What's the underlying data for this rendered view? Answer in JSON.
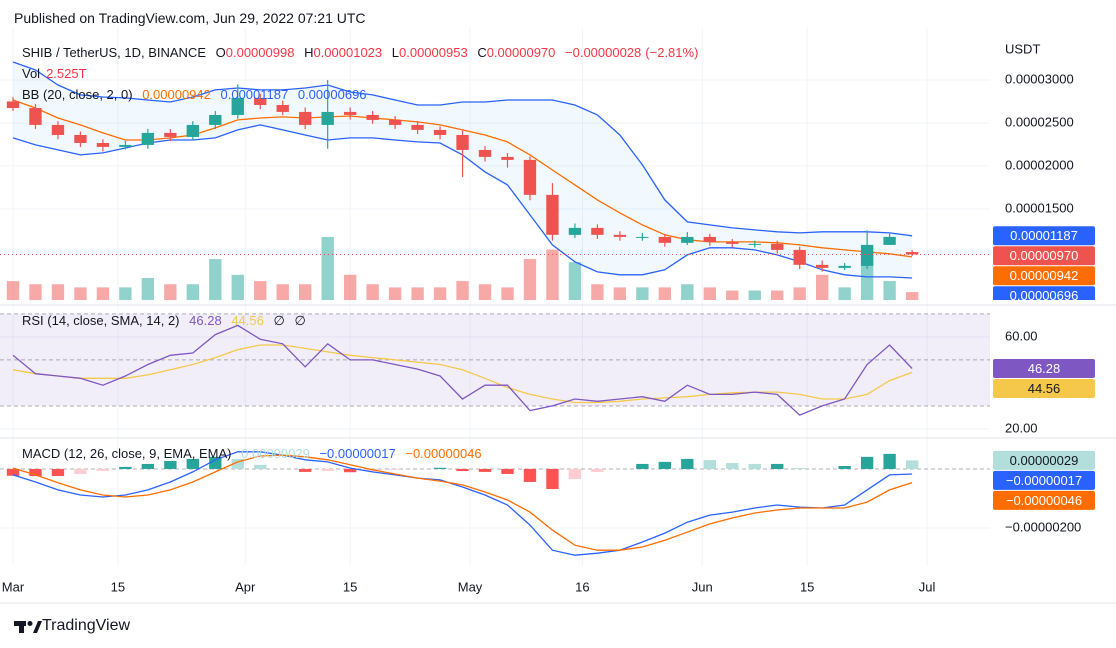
{
  "chart_data": {
    "type": "candlestick",
    "published": "Published on TradingView.com, Jun 29, 2022 07:21 UTC",
    "symbol": "SHIB / TetherUS, 1D, BINANCE",
    "ohlc_legend": [
      {
        "key": "O",
        "value": 9.98e-06,
        "label": "0.00000998"
      },
      {
        "key": "H",
        "value": 1.023e-05,
        "label": "0.00001023"
      },
      {
        "key": "L",
        "value": 9.53e-06,
        "label": "0.00000953"
      },
      {
        "key": "C",
        "value": 9.7e-06,
        "label": "0.00000970"
      }
    ],
    "change": {
      "value": -2.8e-07,
      "label": "−0.00000028"
    },
    "change_pct": {
      "value": -2.81,
      "label": "(−2.81%)"
    },
    "currency": "USDT",
    "brand": "TradingView",
    "grid": true,
    "up_color": "#26a69a",
    "down_color": "#ef5350",
    "xlim": [
      -1.735,
      130.4
    ],
    "xticks": [
      {
        "value": 0,
        "label": "Mar"
      },
      {
        "value": 14,
        "label": "15"
      },
      {
        "value": 31,
        "label": "Apr"
      },
      {
        "value": 45,
        "label": "15"
      },
      {
        "value": 61,
        "label": "May"
      },
      {
        "value": 76,
        "label": "16"
      },
      {
        "value": 92,
        "label": "Jun"
      },
      {
        "value": 106,
        "label": "15"
      },
      {
        "value": 122,
        "label": "Jul"
      }
    ],
    "ylim": [
      4.4e-06,
      3.465e-05
    ],
    "yticks": [
      {
        "value": 3e-05,
        "label": "0.00003000"
      },
      {
        "value": 2.5e-05,
        "label": "0.00002500"
      },
      {
        "value": 2e-05,
        "label": "0.00002000"
      },
      {
        "value": 1.5e-05,
        "label": "0.00001500"
      }
    ],
    "x": [
      0,
      3,
      6,
      9,
      12,
      15,
      18,
      21,
      24,
      27,
      30,
      33,
      36,
      39,
      42,
      45,
      48,
      51,
      54,
      57,
      60,
      63,
      66,
      69,
      72,
      75,
      78,
      81,
      84,
      87,
      90,
      93,
      96,
      99,
      102,
      105,
      108,
      111,
      114,
      117,
      120
    ],
    "open": [
      2.75e-05,
      2.674e-05,
      2.477e-05,
      2.36e-05,
      2.267e-05,
      2.221e-05,
      2.244e-05,
      2.384e-05,
      2.337e-05,
      2.477e-05,
      2.593e-05,
      2.791e-05,
      2.709e-05,
      2.628e-05,
      2.477e-05,
      2.628e-05,
      2.593e-05,
      2.535e-05,
      2.477e-05,
      2.419e-05,
      2.36e-05,
      2.186e-05,
      2.105e-05,
      2.07e-05,
      1.663e-05,
      1.198e-05,
      1.279e-05,
      1.198e-05,
      1.174e-05,
      1.174e-05,
      1.105e-05,
      1.174e-05,
      1.116e-05,
      1.093e-05,
      1.093e-05,
      1.023e-05,
      8.49e-06,
      8.14e-06,
      8.37e-06,
      1.081e-05,
      9.98e-06
    ],
    "high": [
      2.8e-05,
      2.72e-05,
      2.52e-05,
      2.4e-05,
      2.31e-05,
      2.29e-05,
      2.43e-05,
      2.43e-05,
      2.52e-05,
      2.64e-05,
      2.95e-05,
      2.84e-05,
      2.76e-05,
      2.68e-05,
      3e-05,
      2.68e-05,
      2.64e-05,
      2.58e-05,
      2.52e-05,
      2.46e-05,
      2.41e-05,
      2.23e-05,
      2.15e-05,
      2.11e-05,
      1.8e-05,
      1.33e-05,
      1.32e-05,
      1.24e-05,
      1.22e-05,
      1.21e-05,
      1.23e-05,
      1.21e-05,
      1.15e-05,
      1.13e-05,
      1.13e-05,
      1.06e-05,
      9e-06,
      8.7e-06,
      1.25e-05,
      1.21e-05,
      1.023e-05
    ],
    "low": [
      2.64e-05,
      2.43e-05,
      2.31e-05,
      2.22e-05,
      2.17e-05,
      2.19e-05,
      2.2e-05,
      2.29e-05,
      2.3e-05,
      2.43e-05,
      2.55e-05,
      2.66e-05,
      2.59e-05,
      2.43e-05,
      2.2e-05,
      2.54e-05,
      2.49e-05,
      2.43e-05,
      2.37e-05,
      2.31e-05,
      1.87e-05,
      2.05e-05,
      1.98e-05,
      1.6e-05,
      1.13e-05,
      1.16e-05,
      1.15e-05,
      1.13e-05,
      1.13e-05,
      1.06e-05,
      1.08e-05,
      1.07e-05,
      1.05e-05,
      1.05e-05,
      9.8e-06,
      8e-06,
      7.7e-06,
      7.9e-06,
      8e-06,
      1.08e-05,
      9.53e-06
    ],
    "close": [
      2.674e-05,
      2.477e-05,
      2.36e-05,
      2.267e-05,
      2.221e-05,
      2.244e-05,
      2.384e-05,
      2.337e-05,
      2.477e-05,
      2.593e-05,
      2.791e-05,
      2.709e-05,
      2.628e-05,
      2.477e-05,
      2.628e-05,
      2.593e-05,
      2.535e-05,
      2.477e-05,
      2.419e-05,
      2.36e-05,
      2.186e-05,
      2.105e-05,
      2.07e-05,
      1.663e-05,
      1.198e-05,
      1.279e-05,
      1.198e-05,
      1.174e-05,
      1.174e-05,
      1.105e-05,
      1.174e-05,
      1.116e-05,
      1.093e-05,
      1.093e-05,
      1.023e-05,
      8.49e-06,
      8.14e-06,
      8.37e-06,
      1.081e-05,
      1.174e-05,
      9.7e-06
    ],
    "volume": {
      "name": "Vol",
      "legend": {
        "value": 2.525,
        "label": "2.525T"
      },
      "values": [
        6,
        5,
        5,
        4,
        4,
        4,
        7,
        5,
        5,
        13,
        8,
        6,
        5,
        5,
        20,
        8,
        5,
        4,
        4,
        4,
        6,
        5,
        4,
        13,
        16,
        12,
        5,
        4,
        4,
        4,
        5,
        4,
        3,
        3,
        3,
        4,
        8,
        4,
        15,
        6,
        2.525
      ]
    },
    "bb": {
      "name": "BB (20, close, 2, 0)",
      "fill": "#2196f3",
      "middle": {
        "color": "#ff6d00",
        "legend": {
          "value": 9.42e-06,
          "label": "0.00000942"
        },
        "values": [
          2.767e-05,
          2.674e-05,
          2.558e-05,
          2.477e-05,
          2.384e-05,
          2.302e-05,
          2.302e-05,
          2.326e-05,
          2.36e-05,
          2.442e-05,
          2.535e-05,
          2.558e-05,
          2.57e-05,
          2.558e-05,
          2.57e-05,
          2.581e-05,
          2.558e-05,
          2.535e-05,
          2.512e-05,
          2.477e-05,
          2.419e-05,
          2.36e-05,
          2.279e-05,
          2.128e-05,
          1.953e-05,
          1.779e-05,
          1.605e-05,
          1.453e-05,
          1.314e-05,
          1.198e-05,
          1.14e-05,
          1.116e-05,
          1.116e-05,
          1.116e-05,
          1.105e-05,
          1.081e-05,
          1.047e-05,
          1.023e-05,
          1e-05,
          9.77e-06,
          9.42e-06
        ]
      },
      "upper": {
        "color": "#2962ff",
        "legend": {
          "value": 1.187e-05,
          "label": "0.00001187"
        },
        "values": [
          3.209e-05,
          3.116e-05,
          2.942e-05,
          2.826e-05,
          2.802e-05,
          2.791e-05,
          2.767e-05,
          2.744e-05,
          2.802e-05,
          2.884e-05,
          2.907e-05,
          2.884e-05,
          2.884e-05,
          2.907e-05,
          2.942e-05,
          2.86e-05,
          2.826e-05,
          2.767e-05,
          2.709e-05,
          2.709e-05,
          2.744e-05,
          2.744e-05,
          2.767e-05,
          2.767e-05,
          2.767e-05,
          2.709e-05,
          2.593e-05,
          2.36e-05,
          2.012e-05,
          1.605e-05,
          1.349e-05,
          1.314e-05,
          1.279e-05,
          1.256e-05,
          1.233e-05,
          1.221e-05,
          1.233e-05,
          1.233e-05,
          1.233e-05,
          1.221e-05,
          1.187e-05
        ]
      },
      "lower": {
        "color": "#2962ff",
        "legend": {
          "value": 6.96e-06,
          "label": "0.00000696"
        },
        "values": [
          2.326e-05,
          2.244e-05,
          2.186e-05,
          2.128e-05,
          2.151e-05,
          2.209e-05,
          2.267e-05,
          2.302e-05,
          2.302e-05,
          2.326e-05,
          2.419e-05,
          2.477e-05,
          2.419e-05,
          2.36e-05,
          2.302e-05,
          2.326e-05,
          2.326e-05,
          2.302e-05,
          2.279e-05,
          2.267e-05,
          2.128e-05,
          1.93e-05,
          1.779e-05,
          1.43e-05,
          1.081e-05,
          8.84e-06,
          7.67e-06,
          7.33e-06,
          7.33e-06,
          7.91e-06,
          9.65e-06,
          1.047e-05,
          1.047e-05,
          1.023e-05,
          9.65e-06,
          8.84e-06,
          7.91e-06,
          7.33e-06,
          7.09e-06,
          7.09e-06,
          6.96e-06
        ]
      }
    },
    "rsi": {
      "name": "RSI (14, close, SMA, 14, 2)",
      "ylim": [
        16.5,
        70.4
      ],
      "yticks": [
        {
          "value": 60,
          "label": "60.00"
        },
        {
          "value": 20,
          "label": "20.00"
        }
      ],
      "bands": [
        70,
        50,
        30
      ],
      "band_fill": "#7e57c2",
      "na_values": [
        "∅",
        "∅"
      ],
      "line": {
        "color": "#7e57c2",
        "legend": {
          "value": 46.28,
          "label": "46.28"
        },
        "values": [
          52,
          44,
          43,
          42,
          39,
          43,
          48,
          52,
          53,
          61,
          65,
          59,
          57,
          47,
          57,
          50,
          50,
          48,
          46,
          43,
          33,
          39,
          39,
          28,
          30,
          33,
          32,
          33,
          34,
          32,
          39,
          35,
          35,
          36,
          35,
          26,
          30,
          33,
          48,
          56.5,
          46.28
        ]
      },
      "ma": {
        "color": "#f5c84c",
        "legend": {
          "value": 44.56,
          "label": "44.56"
        },
        "values": [
          45.7,
          44,
          43,
          42,
          42,
          42,
          43.5,
          45.7,
          48,
          51,
          54.5,
          56.5,
          56.5,
          55,
          53.5,
          52,
          51,
          50,
          49,
          48,
          45.7,
          42,
          38,
          35,
          33,
          31.5,
          31.5,
          32,
          33,
          33.5,
          34,
          35,
          35.7,
          36,
          36,
          35,
          33,
          33,
          35,
          41,
          44.56
        ]
      }
    },
    "macd": {
      "name": "MACD (12, 26, close, 9, EMA, EMA)",
      "ylim": [
        -3.25e-06,
        9.8e-07
      ],
      "yticks": [
        {
          "value": -2e-06,
          "label": "−0.00000200"
        }
      ],
      "histogram": {
        "colors": [
          "#26a69a",
          "#b2dfdb",
          "#ffcdd2",
          "#ff5252"
        ],
        "legend": {
          "value": 2.9e-07,
          "label": "0.00000029"
        },
        "values": [
          -2.3e-07,
          -2.4e-07,
          -2.4e-07,
          -1.7e-07,
          -7e-08,
          7e-08,
          1.7e-07,
          2.7e-07,
          3.4e-07,
          4.1e-07,
          3.4e-07,
          1.4e-07,
          0,
          -1e-07,
          -7e-08,
          -1.1e-07,
          -7e-08,
          -3e-08,
          0,
          4e-08,
          -7e-08,
          -1e-07,
          -1.7e-07,
          -4.4e-07,
          -6.8e-07,
          -3.4e-07,
          -1e-07,
          0,
          1.7e-07,
          2.4e-07,
          3.4e-07,
          3e-07,
          2e-07,
          1.7e-07,
          1.7e-07,
          3e-08,
          0,
          1e-07,
          4.1e-07,
          5.1e-07,
          2.9e-07
        ]
      },
      "macd": {
        "color": "#2962ff",
        "legend": {
          "value": -1.7e-07,
          "label": "−0.00000017"
        },
        "values": [
          -2e-07,
          -4.4e-07,
          -7.1e-07,
          -8.8e-07,
          -9.5e-07,
          -8.8e-07,
          -7.1e-07,
          -4.4e-07,
          -1e-07,
          3.1e-07,
          5.8e-07,
          5.8e-07,
          4.7e-07,
          3.1e-07,
          2.4e-07,
          3e-08,
          -1e-07,
          -2e-07,
          -3.1e-07,
          -3.7e-07,
          -6.1e-07,
          -8.8e-07,
          -1.22e-06,
          -1.9e-06,
          -2.75e-06,
          -2.92e-06,
          -2.85e-06,
          -2.75e-06,
          -2.47e-06,
          -2.17e-06,
          -1.8e-06,
          -1.56e-06,
          -1.46e-06,
          -1.32e-06,
          -1.22e-06,
          -1.29e-06,
          -1.32e-06,
          -1.22e-06,
          -7.1e-07,
          -2e-07,
          -1.7e-07
        ]
      },
      "signal": {
        "color": "#ff6d00",
        "legend": {
          "value": -4.6e-07,
          "label": "−0.00000046"
        },
        "values": [
          3e-08,
          -2e-07,
          -4.7e-07,
          -7.1e-07,
          -8.8e-07,
          -9.5e-07,
          -8.8e-07,
          -7.1e-07,
          -4.4e-07,
          -1e-07,
          2.4e-07,
          4.4e-07,
          4.7e-07,
          4.1e-07,
          3.1e-07,
          1.4e-07,
          -3e-08,
          -1.7e-07,
          -3.1e-07,
          -4.1e-07,
          -5.4e-07,
          -7.8e-07,
          -1.05e-06,
          -1.46e-06,
          -2.07e-06,
          -2.58e-06,
          -2.75e-06,
          -2.75e-06,
          -2.64e-06,
          -2.41e-06,
          -2.14e-06,
          -1.86e-06,
          -1.66e-06,
          -1.49e-06,
          -1.39e-06,
          -1.32e-06,
          -1.32e-06,
          -1.32e-06,
          -1.12e-06,
          -7.1e-07,
          -4.6e-07
        ]
      }
    }
  }
}
